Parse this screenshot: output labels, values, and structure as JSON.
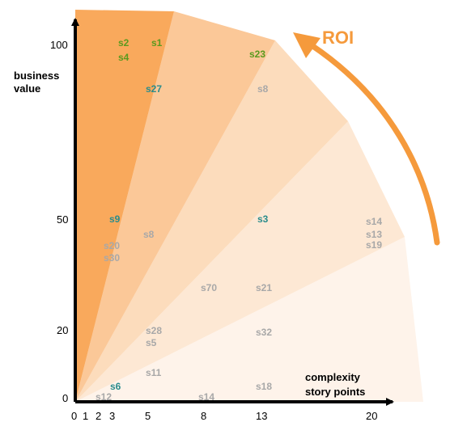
{
  "y_axis": {
    "title_line1": "business",
    "title_line2": "value",
    "ticks": [
      "100",
      "50",
      "20",
      "0"
    ]
  },
  "x_axis": {
    "title_line1": "complexity",
    "title_line2": "story points",
    "ticks": [
      "0",
      "1",
      "2",
      "3",
      "5",
      "8",
      "13",
      "20"
    ]
  },
  "roi": {
    "label": "ROI",
    "color": "#f59a3c"
  },
  "colors": {
    "band1": "#f9a95c",
    "band2": "#fbc898",
    "band3": "#fcdcbc",
    "band4": "#fde8d4",
    "band5": "#fef3ea",
    "green": "#5a9a1e",
    "teal": "#2a8c8c",
    "gray": "#a8a8a8"
  },
  "stories": [
    {
      "label": "s2",
      "color": "green"
    },
    {
      "label": "s1",
      "color": "green"
    },
    {
      "label": "s4",
      "color": "green"
    },
    {
      "label": "s23",
      "color": "green"
    },
    {
      "label": "s27",
      "color": "teal"
    },
    {
      "label": "s8",
      "color": "gray"
    },
    {
      "label": "s9",
      "color": "teal"
    },
    {
      "label": "s3",
      "color": "teal"
    },
    {
      "label": "s14",
      "color": "gray"
    },
    {
      "label": "s13",
      "color": "gray"
    },
    {
      "label": "s19",
      "color": "gray"
    },
    {
      "label": "s8",
      "color": "gray"
    },
    {
      "label": "s20",
      "color": "gray"
    },
    {
      "label": "s30",
      "color": "gray"
    },
    {
      "label": "s70",
      "color": "gray"
    },
    {
      "label": "s21",
      "color": "gray"
    },
    {
      "label": "s28",
      "color": "gray"
    },
    {
      "label": "s5",
      "color": "gray"
    },
    {
      "label": "s32",
      "color": "gray"
    },
    {
      "label": "s11",
      "color": "gray"
    },
    {
      "label": "s6",
      "color": "teal"
    },
    {
      "label": "s18",
      "color": "gray"
    },
    {
      "label": "s12",
      "color": "gray"
    },
    {
      "label": "s14",
      "color": "gray"
    }
  ]
}
